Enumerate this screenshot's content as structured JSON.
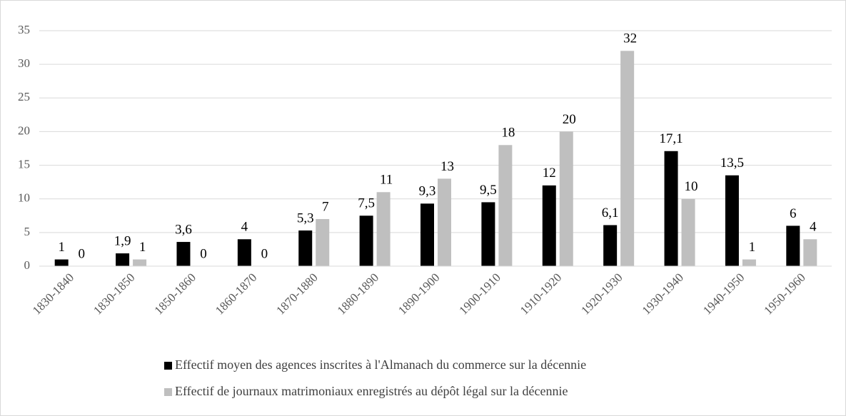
{
  "chart_data": {
    "type": "bar",
    "categories": [
      "1830-1840",
      "1830-1850",
      "1850-1860",
      "1860-1870",
      "1870-1880",
      "1880-1890",
      "1890-1900",
      "1900-1910",
      "1910-1920",
      "1920-1930",
      "1930-1940",
      "1940-1950",
      "1950-1960"
    ],
    "series": [
      {
        "name": "Effectif moyen des agences inscrites à l'Almanach du commerce sur la décennie",
        "color": "#000000",
        "values": [
          1,
          1.9,
          3.6,
          4,
          5.3,
          7.5,
          9.3,
          9.5,
          12,
          6.1,
          17.1,
          13.5,
          6
        ],
        "value_labels": [
          "1",
          "1,9",
          "3,6",
          "4",
          "5,3",
          "7,5",
          "9,3",
          "9,5",
          "12",
          "6,1",
          "17,1",
          "13,5",
          "6"
        ]
      },
      {
        "name": "Effectif de journaux matrimoniaux enregistrés au dépôt légal sur la décennie",
        "color": "#bfbfbf",
        "values": [
          0,
          1,
          0,
          0,
          7,
          11,
          13,
          18,
          20,
          32,
          10,
          1,
          4
        ]
      }
    ],
    "ylim": [
      0,
      35
    ],
    "yticks": [
      0,
      5,
      10,
      15,
      20,
      25,
      30,
      35
    ],
    "grid": true,
    "legend": "bottom"
  }
}
